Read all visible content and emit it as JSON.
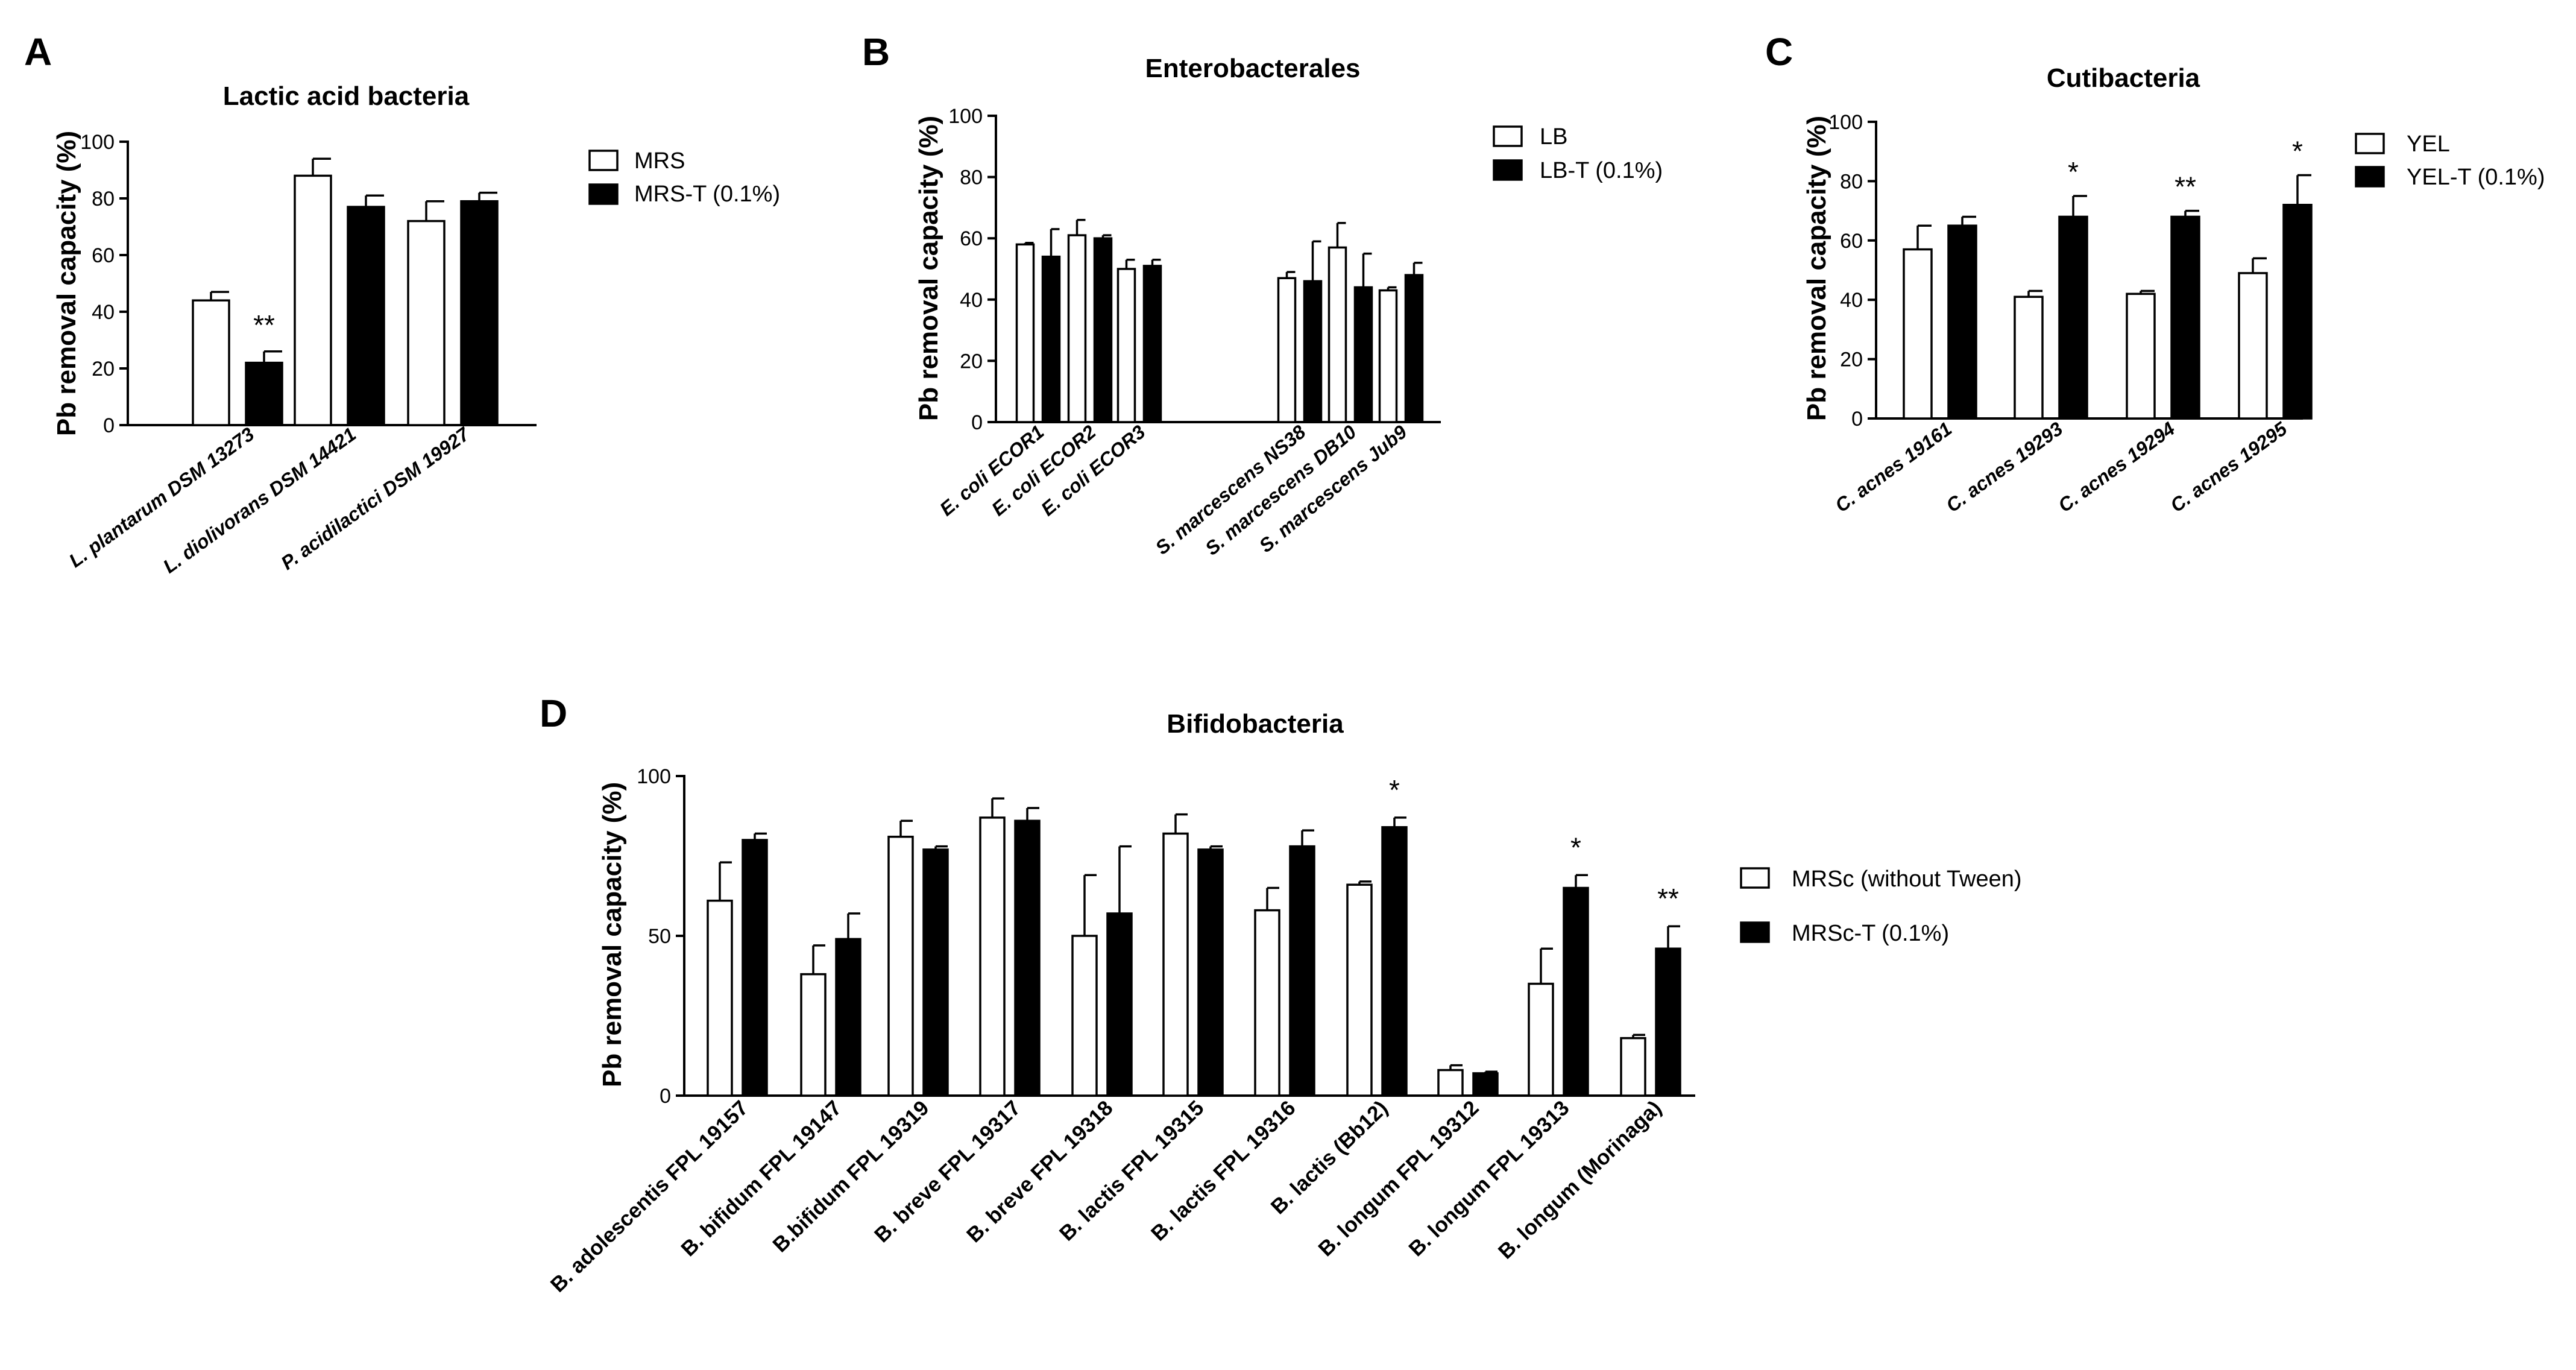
{
  "chart_data": [
    {
      "panel": "A",
      "type": "bar",
      "title": "Lactic acid bacteria",
      "ylabel": "Pb removal capacity (%)",
      "xlabel": "",
      "ylim": [
        0,
        100
      ],
      "yticks": [
        0,
        20,
        40,
        60,
        80,
        100
      ],
      "legend_position": "top-right",
      "categories": [
        "L. plantarum DSM 13273",
        "L. diolivorans DSM 14421",
        "P. acidilactici DSM 19927"
      ],
      "series": [
        {
          "name": "MRS",
          "style": "open",
          "values": [
            44,
            88,
            72
          ],
          "errors": [
            3,
            6,
            7
          ]
        },
        {
          "name": "MRS-T (0.1%)",
          "style": "filled",
          "values": [
            22,
            77,
            79
          ],
          "errors": [
            4,
            4,
            3
          ]
        }
      ],
      "annotations": [
        {
          "category": 0,
          "series": 1,
          "text": "**"
        }
      ]
    },
    {
      "panel": "B",
      "type": "bar",
      "title": "Enterobacterales",
      "ylabel": "Pb removal capacity (%)",
      "xlabel": "",
      "ylim": [
        0,
        100
      ],
      "yticks": [
        0,
        20,
        40,
        60,
        80,
        100
      ],
      "legend_position": "top-right",
      "categories": [
        "E. coli ECOR1",
        "E. coli ECOR2",
        "E. coli ECOR3",
        "S. marcescens NS38",
        "S. marcescens DB10",
        "S. marcescens Jub9"
      ],
      "series": [
        {
          "name": "LB",
          "style": "open",
          "values": [
            58,
            61,
            50,
            47,
            57,
            43
          ],
          "errors": [
            0.5,
            5,
            3,
            2,
            8,
            1
          ]
        },
        {
          "name": "LB-T (0.1%)",
          "style": "filled",
          "values": [
            54,
            60,
            51,
            46,
            44,
            48
          ],
          "errors": [
            9,
            1,
            2,
            13,
            11,
            4
          ]
        }
      ],
      "annotations": []
    },
    {
      "panel": "C",
      "type": "bar",
      "title": "Cutibacteria",
      "ylabel": "Pb removal capacity (%)",
      "xlabel": "",
      "ylim": [
        0,
        100
      ],
      "yticks": [
        0,
        20,
        40,
        60,
        80,
        100
      ],
      "legend_position": "top-right",
      "categories": [
        "C. acnes 19161",
        "C. acnes 19293",
        "C. acnes 19294",
        "C. acnes 19295"
      ],
      "series": [
        {
          "name": "YEL",
          "style": "open",
          "values": [
            57,
            41,
            42,
            49
          ],
          "errors": [
            8,
            2,
            1,
            5
          ]
        },
        {
          "name": "YEL-T (0.1%)",
          "style": "filled",
          "values": [
            65,
            68,
            68,
            72
          ],
          "errors": [
            3,
            7,
            2,
            10
          ]
        }
      ],
      "annotations": [
        {
          "category": 1,
          "series": 1,
          "text": "*"
        },
        {
          "category": 2,
          "series": 1,
          "text": "**"
        },
        {
          "category": 3,
          "series": 1,
          "text": "*"
        }
      ]
    },
    {
      "panel": "D",
      "type": "bar",
      "title": "Bifidobacteria",
      "ylabel": "Pb removal capacity (%)",
      "xlabel": "",
      "ylim": [
        0,
        100
      ],
      "yticks": [
        0,
        50,
        100
      ],
      "legend_position": "right",
      "categories": [
        "B. adolescentis FPL 19157",
        "B. bifidum FPL 19147",
        "B.bifidum FPL 19319",
        "B. breve FPL 19317",
        "B. breve FPL 19318",
        "B. lactis FPL 19315",
        "B. lactis FPL 19316",
        "B. lactis (Bb12)",
        "B. longum FPL 19312",
        "B. longum FPL 19313",
        "B. longum (Morinaga)"
      ],
      "series": [
        {
          "name": "MRSc (without Tween)",
          "style": "open",
          "values": [
            61,
            38,
            81,
            87,
            50,
            82,
            58,
            66,
            8,
            35,
            18
          ],
          "errors": [
            12,
            9,
            5,
            6,
            19,
            6,
            7,
            1,
            1.5,
            11,
            1
          ]
        },
        {
          "name": "MRSc-T (0.1%)",
          "style": "filled",
          "values": [
            80,
            49,
            77,
            86,
            57,
            77,
            78,
            84,
            7,
            65,
            46
          ],
          "errors": [
            2,
            8,
            1,
            4,
            21,
            1,
            5,
            3,
            0.5,
            4,
            7
          ]
        }
      ],
      "annotations": [
        {
          "category": 7,
          "series": 1,
          "text": "*"
        },
        {
          "category": 9,
          "series": 1,
          "text": "*"
        },
        {
          "category": 10,
          "series": 1,
          "text": "**"
        }
      ]
    }
  ]
}
